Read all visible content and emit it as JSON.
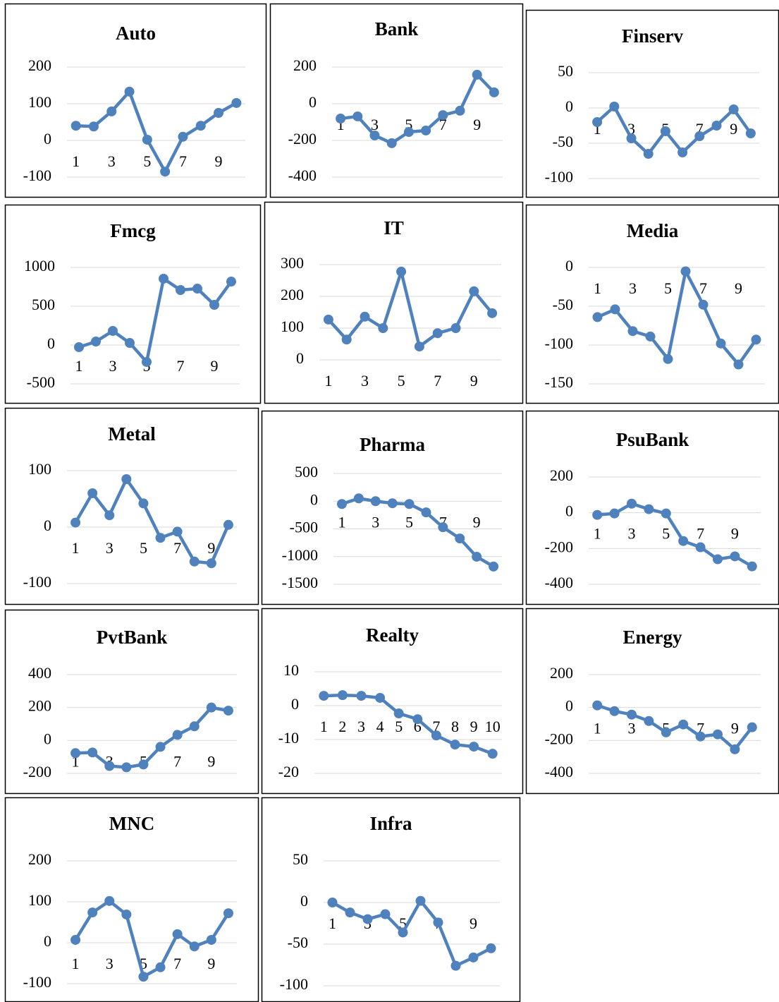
{
  "chart_data": [
    {
      "type": "line",
      "title": "Auto",
      "categories": [
        "1",
        null,
        "3",
        null,
        "5",
        null,
        "7",
        null,
        "9",
        null
      ],
      "values": [
        40,
        38,
        79,
        133,
        2,
        -85,
        10,
        40,
        75,
        102
      ],
      "color": "#4f81bd",
      "ylim": [
        -100,
        200
      ],
      "yticks": [
        -100,
        0,
        100,
        200
      ],
      "grid": true
    },
    {
      "type": "line",
      "title": "Bank",
      "categories": [
        "1",
        null,
        "3",
        null,
        "5",
        null,
        "7",
        null,
        "9",
        null
      ],
      "values": [
        -81,
        -69,
        -173,
        -215,
        -154,
        -146,
        -62,
        -38,
        158,
        62
      ],
      "color": "#4f81bd",
      "ylim": [
        -400,
        200
      ],
      "yticks": [
        -400,
        -200,
        0,
        200
      ],
      "grid": true
    },
    {
      "type": "line",
      "title": "Finserv",
      "categories": [
        "1",
        null,
        "3",
        null,
        "5",
        null,
        "7",
        null,
        "9",
        null
      ],
      "values": [
        -20,
        2,
        -43,
        -65,
        -33,
        -63,
        -40,
        -25,
        -2,
        -36
      ],
      "color": "#4f81bd",
      "ylim": [
        -100,
        50
      ],
      "yticks": [
        -100,
        -50,
        0,
        50
      ],
      "grid": true
    },
    {
      "type": "line",
      "title": "Fmcg",
      "categories": [
        "1",
        null,
        "3",
        null,
        "5",
        null,
        "7",
        null,
        "9",
        null
      ],
      "values": [
        -27,
        45,
        182,
        27,
        -218,
        855,
        709,
        727,
        518,
        818
      ],
      "color": "#4f81bd",
      "ylim": [
        -500,
        1000
      ],
      "yticks": [
        -500,
        0,
        500,
        1000
      ],
      "grid": true
    },
    {
      "type": "line",
      "title": "IT",
      "categories": [
        "1",
        null,
        "3",
        null,
        "5",
        null,
        "7",
        null,
        "9",
        null
      ],
      "values": [
        127,
        64,
        136,
        100,
        278,
        42,
        84,
        100,
        216,
        147
      ],
      "color": "#4f81bd",
      "ylim": [
        0,
        300
      ],
      "yticks": [
        0,
        100,
        200,
        300
      ],
      "grid": true
    },
    {
      "type": "line",
      "title": "Media",
      "categories": [
        "1",
        null,
        "3",
        null,
        "5",
        null,
        "7",
        null,
        "9",
        null
      ],
      "values": [
        -64,
        -54,
        -82,
        -89,
        -118,
        -5,
        -48,
        -98,
        -125,
        -93
      ],
      "color": "#4f81bd",
      "ylim": [
        -150,
        0
      ],
      "yticks": [
        -150,
        -100,
        -50,
        0
      ],
      "grid": true
    },
    {
      "type": "line",
      "title": "Metal",
      "categories": [
        "1",
        null,
        "3",
        null,
        "5",
        null,
        "7",
        null,
        "9",
        null
      ],
      "values": [
        8,
        60,
        21,
        85,
        42,
        -19,
        -8,
        -61,
        -64,
        4
      ],
      "color": "#4f81bd",
      "ylim": [
        -100,
        100
      ],
      "yticks": [
        -100,
        0,
        100
      ],
      "grid": true
    },
    {
      "type": "line",
      "title": "Pharma",
      "categories": [
        "1",
        null,
        "3",
        null,
        "5",
        null,
        "7",
        null,
        "9",
        null
      ],
      "values": [
        -51,
        51,
        0,
        -38,
        -51,
        -203,
        -470,
        -673,
        -1003,
        -1180
      ],
      "color": "#4f81bd",
      "ylim": [
        -1500,
        500
      ],
      "yticks": [
        -1500,
        -1000,
        -500,
        0,
        500
      ],
      "grid": true
    },
    {
      "type": "line",
      "title": "PsuBank",
      "categories": [
        "1",
        null,
        "3",
        null,
        "5",
        null,
        "7",
        null,
        "9",
        null
      ],
      "values": [
        -12,
        -4,
        51,
        20,
        -4,
        -158,
        -193,
        -260,
        -244,
        -300
      ],
      "color": "#4f81bd",
      "ylim": [
        -400,
        200
      ],
      "yticks": [
        -400,
        -200,
        0,
        200
      ],
      "grid": true
    },
    {
      "type": "line",
      "title": "PvtBank",
      "categories": [
        "1",
        null,
        "3",
        null,
        "5",
        null,
        "7",
        null,
        "9",
        null
      ],
      "values": [
        -77,
        -73,
        -155,
        -163,
        -146,
        -39,
        34,
        86,
        200,
        181
      ],
      "color": "#4f81bd",
      "ylim": [
        -200,
        400
      ],
      "yticks": [
        -200,
        0,
        200,
        400
      ],
      "grid": true
    },
    {
      "type": "line",
      "title": "Realty",
      "categories": [
        "1",
        "2",
        "3",
        "4",
        "5",
        "6",
        "7",
        "8",
        "9",
        "10"
      ],
      "values": [
        2.9,
        3.1,
        2.9,
        2.3,
        -2.3,
        -4,
        -8.8,
        -11.5,
        -12.1,
        -14.2
      ],
      "color": "#4f81bd",
      "ylim": [
        -20,
        10
      ],
      "yticks": [
        -20,
        -10,
        0,
        10
      ],
      "grid": true
    },
    {
      "type": "line",
      "title": "Energy",
      "categories": [
        "1",
        null,
        "3",
        null,
        "5",
        null,
        "7",
        null,
        "9",
        null
      ],
      "values": [
        13,
        -22,
        -43,
        -82,
        -151,
        -103,
        -176,
        -163,
        -254,
        -120
      ],
      "color": "#4f81bd",
      "ylim": [
        -400,
        200
      ],
      "yticks": [
        -400,
        -200,
        0,
        200
      ],
      "grid": true
    },
    {
      "type": "line",
      "title": "MNC",
      "categories": [
        "1",
        null,
        "3",
        null,
        "5",
        null,
        "7",
        null,
        "9",
        null
      ],
      "values": [
        7,
        74,
        102,
        69,
        -83,
        -60,
        21,
        -9,
        7,
        72
      ],
      "color": "#4f81bd",
      "ylim": [
        -100,
        200
      ],
      "yticks": [
        -100,
        0,
        100,
        200
      ],
      "grid": true
    },
    {
      "type": "line",
      "title": "Infra",
      "categories": [
        "1",
        null,
        "3",
        null,
        "5",
        null,
        "7",
        null,
        "9",
        null
      ],
      "values": [
        0,
        -12,
        -20,
        -14,
        -36,
        2,
        -24,
        -76,
        -66,
        -55
      ],
      "color": "#4f81bd",
      "ylim": [
        -100,
        50
      ],
      "yticks": [
        -100,
        -50,
        0,
        50
      ],
      "grid": true
    }
  ]
}
